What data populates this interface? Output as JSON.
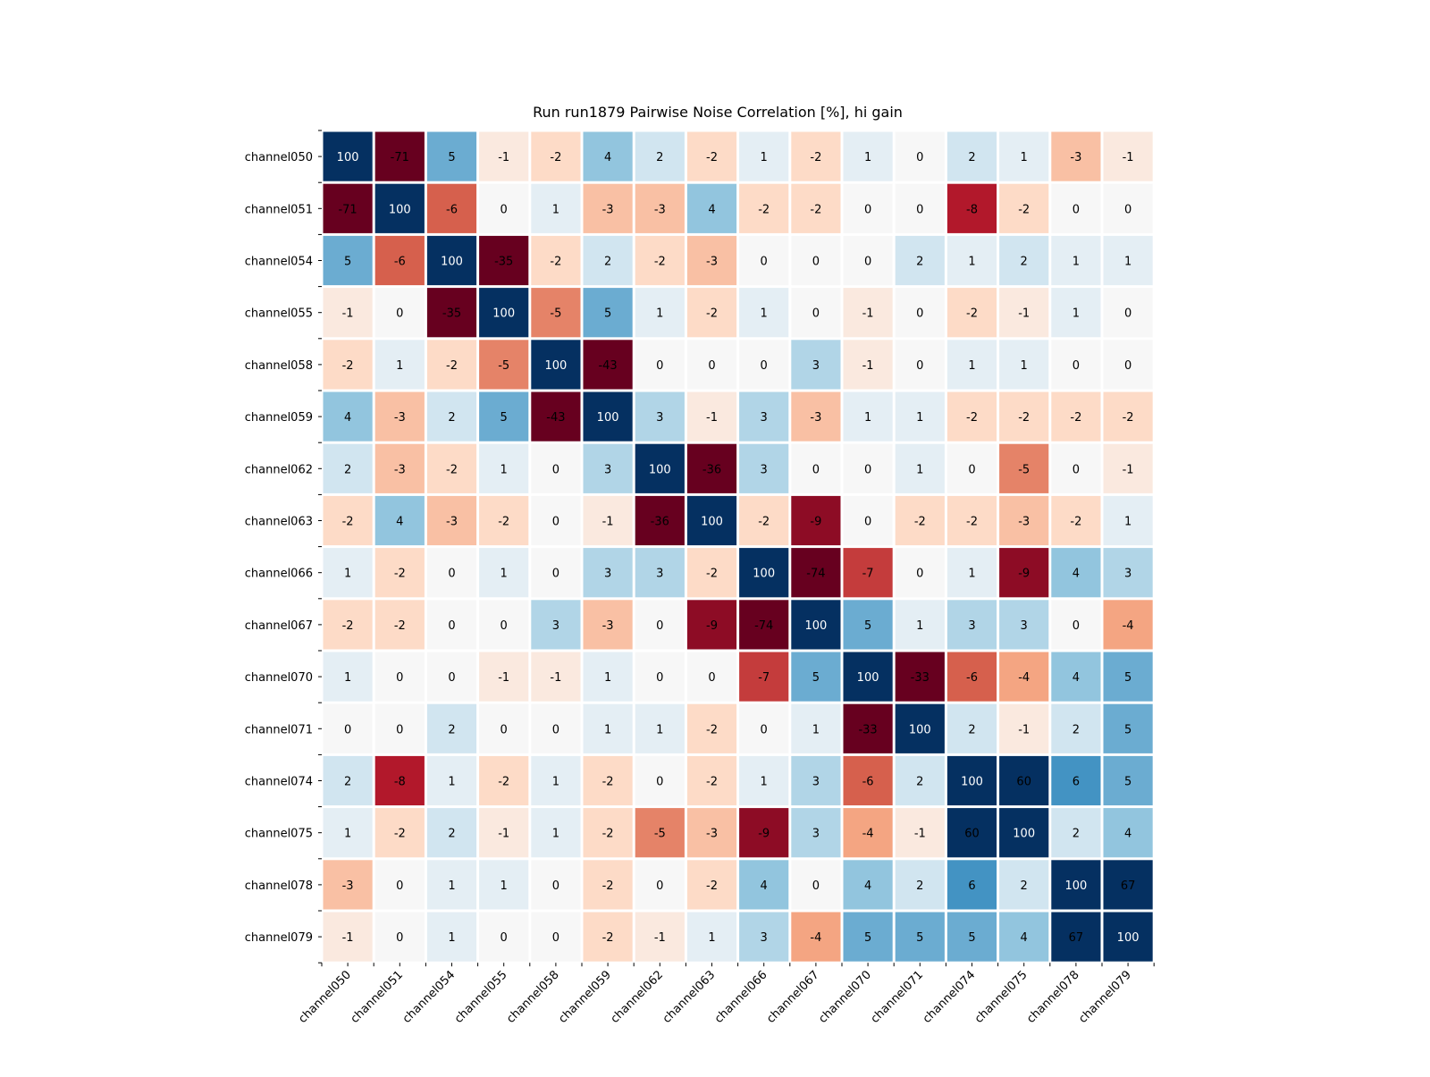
{
  "chart_data": {
    "type": "heatmap",
    "title": "Run run1879 Pairwise Noise Correlation [%], hi gain",
    "xlabel": "",
    "ylabel": "",
    "colormap": "RdBu",
    "vmin": -10,
    "vmax": 10,
    "high_color": "#053061",
    "low_color": "#67001f",
    "labels": [
      "channel050",
      "channel051",
      "channel054",
      "channel055",
      "channel058",
      "channel059",
      "channel062",
      "channel063",
      "channel066",
      "channel067",
      "channel070",
      "channel071",
      "channel074",
      "channel075",
      "channel078",
      "channel079"
    ],
    "values": [
      [
        100,
        -71,
        5,
        -1,
        -2,
        4,
        2,
        -2,
        1,
        -2,
        1,
        0,
        2,
        1,
        -3,
        -1
      ],
      [
        -71,
        100,
        -6,
        0,
        1,
        -3,
        -3,
        4,
        -2,
        -2,
        0,
        0,
        -8,
        -2,
        0,
        0
      ],
      [
        5,
        -6,
        100,
        -35,
        -2,
        2,
        -2,
        -3,
        0,
        0,
        0,
        2,
        1,
        2,
        1,
        1
      ],
      [
        -1,
        0,
        -35,
        100,
        -5,
        5,
        1,
        -2,
        1,
        0,
        -1,
        0,
        -2,
        -1,
        1,
        0
      ],
      [
        -2,
        1,
        -2,
        -5,
        100,
        -43,
        0,
        0,
        0,
        3,
        -1,
        0,
        1,
        1,
        0,
        0
      ],
      [
        4,
        -3,
        2,
        5,
        -43,
        100,
        3,
        -1,
        3,
        -3,
        1,
        1,
        -2,
        -2,
        -2,
        -2
      ],
      [
        2,
        -3,
        -2,
        1,
        0,
        3,
        100,
        -36,
        3,
        0,
        0,
        1,
        0,
        -5,
        0,
        -1
      ],
      [
        -2,
        4,
        -3,
        -2,
        0,
        -1,
        -36,
        100,
        -2,
        -9,
        0,
        -2,
        -2,
        -3,
        -2,
        1
      ],
      [
        1,
        -2,
        0,
        1,
        0,
        3,
        3,
        -2,
        100,
        -74,
        -7,
        0,
        1,
        -9,
        4,
        3
      ],
      [
        -2,
        -2,
        0,
        0,
        3,
        -3,
        0,
        -9,
        -74,
        100,
        5,
        1,
        3,
        3,
        0,
        -4
      ],
      [
        1,
        0,
        0,
        -1,
        -1,
        1,
        0,
        0,
        -7,
        5,
        100,
        -33,
        -6,
        -4,
        4,
        5
      ],
      [
        0,
        0,
        2,
        0,
        0,
        1,
        1,
        -2,
        0,
        1,
        -33,
        100,
        2,
        -1,
        2,
        5
      ],
      [
        2,
        -8,
        1,
        -2,
        1,
        -2,
        0,
        -2,
        1,
        3,
        -6,
        2,
        100,
        60,
        6,
        5
      ],
      [
        1,
        -2,
        2,
        -1,
        1,
        -2,
        -5,
        -3,
        -9,
        3,
        -4,
        -1,
        60,
        100,
        2,
        4
      ],
      [
        -3,
        0,
        1,
        1,
        0,
        -2,
        0,
        -2,
        4,
        0,
        4,
        2,
        6,
        2,
        100,
        67
      ],
      [
        -1,
        0,
        1,
        0,
        0,
        -2,
        -1,
        1,
        3,
        -4,
        5,
        5,
        5,
        4,
        67,
        100
      ]
    ]
  }
}
